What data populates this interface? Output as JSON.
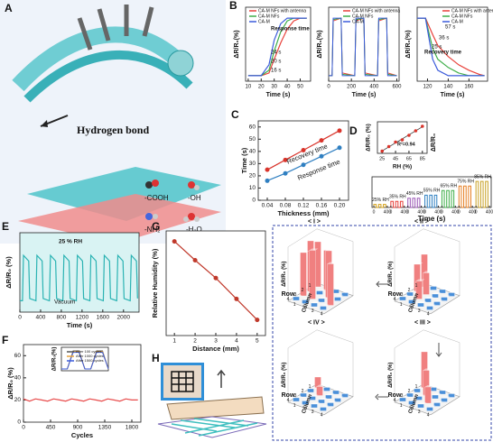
{
  "illustrations": {
    "A": {
      "label": "A",
      "hydrogen_bond": "Hydrogen bond",
      "groups": [
        "-COOH",
        "-OH",
        "-NH₂",
        "-H₂O"
      ]
    },
    "H": {
      "label": "H"
    }
  },
  "chart_data": [
    {
      "panel": "B",
      "type": "line",
      "xlabel": "Time (s)",
      "ylabel": "ΔR/R₀(%)",
      "x": [
        10,
        20,
        26,
        30,
        35,
        40,
        45,
        50,
        55
      ],
      "xlim": [
        8,
        58
      ],
      "ylim": [
        -2,
        25
      ],
      "xticks": [
        10,
        20,
        30,
        40,
        50
      ],
      "legend": true,
      "series": [
        {
          "name": "CA-M NFs with antenna",
          "color": "#e8413a",
          "values": [
            0,
            0,
            1,
            6,
            12,
            17,
            20,
            21,
            21
          ]
        },
        {
          "name": "CA-M NFs",
          "color": "#3fae49",
          "values": [
            0,
            0,
            2,
            9,
            16,
            20,
            21,
            21,
            21
          ]
        },
        {
          "name": "CA-M",
          "color": "#3b5bdb",
          "values": [
            0,
            0,
            4,
            13,
            19,
            21,
            21,
            21,
            21
          ]
        }
      ],
      "annotations": [
        "Response time",
        "24 s",
        "20 s",
        "16 s"
      ]
    },
    {
      "type": "line",
      "xlabel": "Time (s)",
      "ylabel": "ΔR/R₀(%)",
      "x": [
        0,
        30,
        40,
        110,
        120,
        230,
        240,
        310,
        320,
        430,
        440,
        510,
        520,
        600
      ],
      "xlim": [
        0,
        620
      ],
      "ylim": [
        -2,
        25
      ],
      "xticks": [
        0,
        200,
        400,
        600
      ],
      "legend": true,
      "series": [
        {
          "name": "CA-M NFs with antenna",
          "color": "#e8413a",
          "values": [
            0,
            0,
            20,
            21,
            1,
            0,
            20,
            21,
            1,
            0,
            20,
            21,
            1,
            0
          ]
        },
        {
          "name": "CA-M NFs",
          "color": "#3fae49",
          "values": [
            0,
            0,
            20.5,
            21,
            0.5,
            0,
            20.5,
            21,
            0.5,
            0,
            20.5,
            21,
            0.5,
            0
          ]
        },
        {
          "name": "CA-M",
          "color": "#3b5bdb",
          "values": [
            0,
            0,
            21,
            21,
            0,
            0,
            21,
            21,
            0,
            0,
            21,
            21,
            0,
            0
          ]
        }
      ]
    },
    {
      "type": "line",
      "xlabel": "Time (s)",
      "ylabel": "ΔR/R₀(%)",
      "x": [
        110,
        118,
        125,
        130,
        140,
        150,
        160,
        170,
        175
      ],
      "xlim": [
        110,
        178
      ],
      "ylim": [
        -2,
        25
      ],
      "xticks": [
        120,
        140,
        160
      ],
      "legend": true,
      "series": [
        {
          "name": "CA-M NFs with antenna",
          "color": "#e8413a",
          "values": [
            21,
            21,
            15,
            11,
            7,
            4,
            2,
            0.5,
            0
          ]
        },
        {
          "name": "CA-M NFs",
          "color": "#3fae49",
          "values": [
            21,
            21,
            10,
            6,
            3,
            1,
            0,
            0,
            0
          ]
        },
        {
          "name": "CA-M",
          "color": "#3b5bdb",
          "values": [
            21,
            21,
            6,
            2,
            0,
            0,
            0,
            0,
            0
          ]
        }
      ],
      "annotations": [
        "Recovery time",
        "57 s",
        "36 s",
        "25 s"
      ]
    },
    {
      "panel": "C",
      "type": "line",
      "markers": true,
      "xlabel": "Thickness (mm)",
      "ylabel": "Time (s)",
      "x": [
        0.04,
        0.08,
        0.12,
        0.16,
        0.2
      ],
      "xlim": [
        0.02,
        0.22
      ],
      "ylim": [
        0,
        65
      ],
      "xticks": [
        0.04,
        0.08,
        0.12,
        0.16,
        {
          "value": 0.2,
          "label": "0.20"
        }
      ],
      "yticks": [
        0,
        10,
        20,
        30,
        40,
        50,
        60
      ],
      "series": [
        {
          "name": "Recovery time",
          "color": "#d9342b",
          "values": [
            25,
            33,
            41,
            49,
            57
          ]
        },
        {
          "name": "Response time",
          "color": "#2f7fc1",
          "values": [
            16,
            22,
            29,
            36,
            43
          ]
        }
      ]
    },
    {
      "panel": "D",
      "type": "pulses",
      "xlabel": "Time (s)",
      "ylabel": "ΔR/R₀",
      "categories": [
        "25% RH",
        "35% RH",
        "45% RH",
        "55% RH",
        "65% RH",
        "75% RH",
        "85% RH"
      ],
      "values": [
        2,
        4,
        6,
        8,
        11,
        14,
        17
      ],
      "colors": [
        "#d4a017",
        "#e8413a",
        "#9b59b6",
        "#2f7fc1",
        "#3fae49",
        "#e67e22",
        "#c9a227"
      ],
      "ylim": [
        0,
        20
      ],
      "seg_xticks": [
        0,
        400
      ]
    },
    {
      "type": "scatter",
      "markers": true,
      "fit": true,
      "xlabel": "RH (%)",
      "ylabel": "ΔR/R₀ (%)",
      "x": [
        25,
        35,
        45,
        55,
        65,
        75,
        85
      ],
      "xlim": [
        18,
        92
      ],
      "ylim": [
        0,
        14
      ],
      "xticks": [
        25,
        45,
        65,
        85
      ],
      "series": [
        {
          "color": "#d9342b",
          "values": [
            1,
            3,
            5,
            6,
            8,
            10,
            12
          ]
        }
      ],
      "annotations": [
        "R²=0.94"
      ]
    },
    {
      "panel": "E",
      "type": "line",
      "xlabel": "Time (s)",
      "ylabel": "ΔR/R₀ (%)",
      "xlim": [
        0,
        2300
      ],
      "ylim": [
        0,
        7
      ],
      "xticks": [
        0,
        400,
        800,
        1200,
        1600,
        2000
      ],
      "background": "#d9f3f3",
      "x": [
        0,
        50,
        70,
        170,
        190,
        310,
        330,
        430,
        450,
        570,
        590,
        690,
        710,
        830,
        850,
        950,
        970,
        1090,
        1110,
        1210,
        1230,
        1350,
        1370,
        1470,
        1490,
        1610,
        1630,
        1730,
        1750,
        1870,
        1890,
        1990,
        2010,
        2130,
        2150,
        2250,
        2270
      ],
      "series": [
        {
          "color": "#2bb3b3",
          "values": [
            1,
            1,
            5,
            4.5,
            1.2,
            1,
            5,
            4.5,
            1.2,
            1,
            5,
            4.5,
            1.2,
            1,
            5,
            4.5,
            1.2,
            1,
            5,
            4.5,
            1.2,
            1,
            5,
            4.5,
            1.2,
            1,
            5,
            4.5,
            1.2,
            1,
            5,
            4.5,
            1.2,
            1,
            5,
            4.5,
            1.2
          ]
        }
      ],
      "annotations": [
        "25 % RH",
        "Vacuum"
      ]
    },
    {
      "panel": "F",
      "type": "line",
      "xlabel": "Cycles",
      "ylabel": "ΔR/R₀ (%)",
      "xlim": [
        0,
        1950
      ],
      "ylim": [
        0,
        70
      ],
      "xticks": [
        0,
        450,
        900,
        1350,
        1800
      ],
      "yticks": [
        0,
        20,
        40,
        60
      ],
      "x": [
        0,
        100,
        200,
        300,
        400,
        500,
        600,
        700,
        800,
        900,
        1000,
        1100,
        1200,
        1300,
        1400,
        1500,
        1600,
        1700,
        1800,
        1900
      ],
      "series": [
        {
          "color": "#e84a4a",
          "values": [
            21,
            19,
            21,
            20,
            19,
            21,
            20,
            19,
            21,
            20,
            19,
            21,
            20,
            19,
            21,
            20,
            19,
            21,
            20,
            20
          ]
        }
      ]
    },
    {
      "type": "line",
      "ylabel": "ΔR/R₀(%)",
      "x": [
        0,
        1,
        2,
        3,
        4,
        5,
        6,
        7,
        8
      ],
      "xlim": [
        0,
        8
      ],
      "ylim": [
        -1,
        12
      ],
      "legend": true,
      "series": [
        {
          "name": "After 100 cycles",
          "color": "#555555",
          "values": [
            0,
            0,
            10,
            10,
            0,
            0,
            10,
            10,
            0
          ]
        },
        {
          "name": "After 1000 cycles",
          "color": "#e8a33a",
          "values": [
            0,
            0,
            9.6,
            9.6,
            0,
            0,
            9.6,
            9.6,
            0
          ]
        },
        {
          "name": "After 1500 cycles",
          "color": "#3b5bdb",
          "values": [
            0,
            0,
            9.2,
            9.2,
            0,
            0,
            9.2,
            9.2,
            0
          ]
        }
      ]
    },
    {
      "panel": "G",
      "type": "line",
      "markers": true,
      "xlabel": "Distance (mm)",
      "ylabel": "Relative Humidity (%)",
      "x": [
        1,
        2,
        3,
        4,
        5
      ],
      "xlim": [
        0.6,
        5.4
      ],
      "ylim": [
        0,
        100
      ],
      "xticks": [
        1,
        2,
        3,
        4,
        5
      ],
      "series": [
        {
          "color": "#c0392b",
          "values": [
            90,
            72,
            55,
            35,
            15
          ]
        }
      ]
    },
    {
      "type": "bar3d",
      "title": "< I >",
      "zlabel": "ΔR/R₀ (%)",
      "rowlabel": "Row",
      "collabel": "Column",
      "ticks": [
        1,
        2,
        3,
        4
      ],
      "zlim": [
        0,
        30
      ],
      "series": [
        {
          "color": "#f08080",
          "values": [
            [
              25,
              22,
              null,
              null
            ],
            [
              28,
              null,
              26,
              null
            ],
            [
              24,
              27,
              null,
              23
            ],
            [
              null,
              null,
              null,
              null
            ]
          ]
        },
        {
          "color": "#4a8fd9",
          "values": [
            [
              null,
              null,
              2,
              2
            ],
            [
              null,
              2,
              null,
              2
            ],
            [
              null,
              null,
              2,
              null
            ],
            [
              2,
              2,
              2,
              2
            ]
          ]
        }
      ]
    },
    {
      "type": "bar3d",
      "title": "< II >",
      "zlabel": "ΔR/R₀ (%)",
      "rowlabel": "Row",
      "collabel": "Column",
      "ticks": [
        1,
        2,
        3,
        4
      ],
      "zlim": [
        0,
        30
      ],
      "series": [
        {
          "color": "#f08080",
          "values": [
            [
              18,
              null,
              null,
              null
            ],
            [
              15,
              12,
              null,
              null
            ],
            [
              null,
              10,
              null,
              null
            ],
            [
              null,
              null,
              null,
              null
            ]
          ]
        },
        {
          "color": "#4a8fd9",
          "values": [
            [
              null,
              2,
              2,
              2
            ],
            [
              null,
              null,
              2,
              2
            ],
            [
              2,
              null,
              2,
              2
            ],
            [
              2,
              2,
              2,
              2
            ]
          ]
        }
      ]
    },
    {
      "type": "bar3d",
      "title": "< III >",
      "zlabel": "ΔR/R₀ (%)",
      "rowlabel": "Row",
      "collabel": "Column",
      "ticks": [
        1,
        2,
        3,
        4
      ],
      "zlim": [
        0,
        30
      ],
      "series": [
        {
          "color": "#f08080",
          "values": [
            [
              20,
              null,
              null,
              null
            ],
            [
              null,
              14,
              null,
              null
            ],
            [
              null,
              null,
              9,
              null
            ],
            [
              null,
              null,
              null,
              null
            ]
          ]
        },
        {
          "color": "#4a8fd9",
          "values": [
            [
              null,
              2,
              2,
              2
            ],
            [
              2,
              null,
              2,
              2
            ],
            [
              2,
              2,
              null,
              2
            ],
            [
              2,
              2,
              2,
              2
            ]
          ]
        }
      ]
    },
    {
      "type": "bar3d",
      "title": "< IV >",
      "zlabel": "ΔR/R₀ (%)",
      "rowlabel": "Row",
      "collabel": "Column",
      "ticks": [
        1,
        2,
        3,
        4
      ],
      "zlim": [
        0,
        30
      ],
      "series": [
        {
          "color": "#f08080",
          "values": [
            [
              6,
              null,
              null,
              null
            ],
            [
              null,
              5,
              null,
              null
            ],
            [
              null,
              null,
              null,
              null
            ],
            [
              null,
              null,
              null,
              null
            ]
          ]
        },
        {
          "color": "#4a8fd9",
          "values": [
            [
              null,
              2,
              2,
              2
            ],
            [
              2,
              null,
              2,
              2
            ],
            [
              2,
              2,
              2,
              2
            ],
            [
              2,
              2,
              2,
              2
            ]
          ]
        }
      ]
    }
  ]
}
